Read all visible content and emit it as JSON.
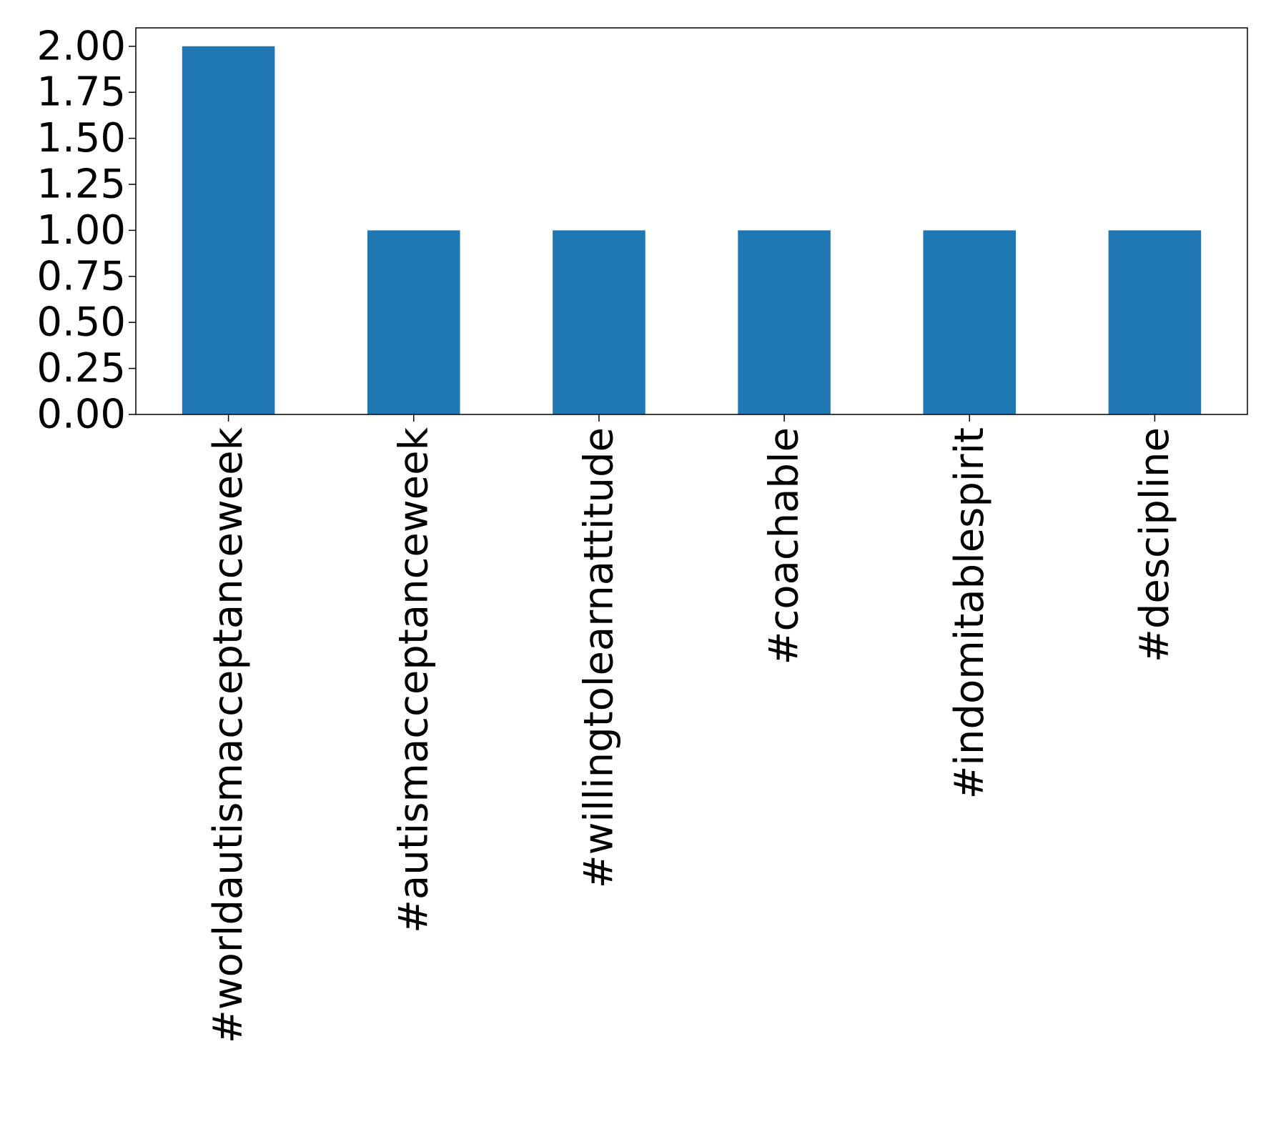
{
  "chart_data": {
    "type": "bar",
    "title": "",
    "xlabel": "",
    "ylabel": "",
    "categories": [
      "#worldautismacceptanceweek",
      "#autismacceptanceweek",
      "#willingtolearnattitude",
      "#coachable",
      "#indomitablespirit",
      "#descipline"
    ],
    "values": [
      2,
      1,
      1,
      1,
      1,
      1
    ],
    "ylim": [
      0,
      2.1
    ],
    "yticks": [
      "0.00",
      "0.25",
      "0.50",
      "0.75",
      "1.00",
      "1.25",
      "1.50",
      "1.75",
      "2.00"
    ],
    "ytick_values": [
      0,
      0.25,
      0.5,
      0.75,
      1.0,
      1.25,
      1.5,
      1.75,
      2.0
    ],
    "grid": false,
    "legend": "none",
    "colors": {
      "bar": "#1f77b4",
      "axis": "#000000",
      "background": "#ffffff"
    }
  }
}
